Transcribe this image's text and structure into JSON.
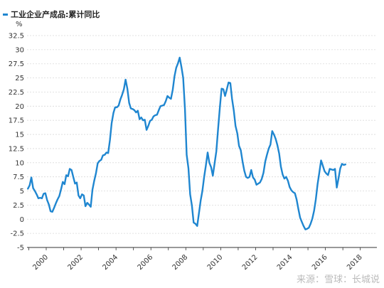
{
  "legend": {
    "label": "工业企业产成品:累计同比",
    "color": "#1f86d0"
  },
  "unit_label": "%",
  "watermark": "来源：雪球：长城说",
  "chart_data": {
    "type": "line",
    "title": "",
    "xlabel": "",
    "ylabel": "%",
    "ylim": [
      -5,
      32.5
    ],
    "yticks": [
      -5,
      -2.5,
      0,
      2.5,
      5,
      7.5,
      10,
      12.5,
      15,
      17.5,
      20,
      22.5,
      25,
      27.5,
      30,
      32.5
    ],
    "ytick_labels": [
      "-5",
      "-2.5",
      "0",
      "2.5",
      "5",
      "7.5",
      "10",
      "12.5",
      "15",
      "17.5",
      "20",
      "22.5",
      "25",
      "27.5",
      "30",
      "32.5"
    ],
    "xlim": [
      1998.9,
      2018.95
    ],
    "xticks": [
      2000,
      2002,
      2004,
      2006,
      2008,
      2010,
      2012,
      2014,
      2016,
      2018
    ],
    "xtick_labels": [
      "2000",
      "2002",
      "2004",
      "2006",
      "2008",
      "2010",
      "2012",
      "2014",
      "2016",
      "2018"
    ],
    "grid": true,
    "series": [
      {
        "name": "工业企业产成品:累计同比",
        "color": "#1f86d0",
        "points": [
          [
            1998.95,
            5.4
          ],
          [
            1999.05,
            6.0
          ],
          [
            1999.15,
            7.4
          ],
          [
            1999.25,
            5.5
          ],
          [
            1999.35,
            5.0
          ],
          [
            1999.45,
            4.4
          ],
          [
            1999.55,
            3.7
          ],
          [
            1999.65,
            3.8
          ],
          [
            1999.75,
            3.7
          ],
          [
            1999.85,
            4.5
          ],
          [
            1999.95,
            4.6
          ],
          [
            2000.05,
            3.4
          ],
          [
            2000.15,
            2.6
          ],
          [
            2000.25,
            1.4
          ],
          [
            2000.35,
            1.3
          ],
          [
            2000.45,
            2.0
          ],
          [
            2000.55,
            2.8
          ],
          [
            2000.65,
            3.5
          ],
          [
            2000.75,
            4.1
          ],
          [
            2000.85,
            5.3
          ],
          [
            2000.95,
            6.6
          ],
          [
            2001.05,
            6.2
          ],
          [
            2001.15,
            7.8
          ],
          [
            2001.25,
            7.6
          ],
          [
            2001.35,
            8.9
          ],
          [
            2001.45,
            8.7
          ],
          [
            2001.55,
            7.5
          ],
          [
            2001.65,
            6.3
          ],
          [
            2001.75,
            6.5
          ],
          [
            2001.85,
            4.2
          ],
          [
            2001.95,
            3.7
          ],
          [
            2002.05,
            4.4
          ],
          [
            2002.15,
            4.2
          ],
          [
            2002.25,
            2.3
          ],
          [
            2002.35,
            2.9
          ],
          [
            2002.45,
            2.6
          ],
          [
            2002.55,
            2.2
          ],
          [
            2002.65,
            5.2
          ],
          [
            2002.75,
            6.8
          ],
          [
            2002.85,
            8.1
          ],
          [
            2002.95,
            9.9
          ],
          [
            2003.05,
            10.3
          ],
          [
            2003.15,
            10.5
          ],
          [
            2003.25,
            11.3
          ],
          [
            2003.35,
            11.4
          ],
          [
            2003.45,
            11.8
          ],
          [
            2003.55,
            11.7
          ],
          [
            2003.65,
            14.0
          ],
          [
            2003.75,
            17.0
          ],
          [
            2003.85,
            18.8
          ],
          [
            2003.95,
            19.8
          ],
          [
            2004.05,
            19.8
          ],
          [
            2004.15,
            20.1
          ],
          [
            2004.25,
            21.2
          ],
          [
            2004.35,
            22.0
          ],
          [
            2004.45,
            23.0
          ],
          [
            2004.55,
            24.7
          ],
          [
            2004.65,
            23.1
          ],
          [
            2004.75,
            20.6
          ],
          [
            2004.85,
            19.6
          ],
          [
            2004.95,
            19.5
          ],
          [
            2005.05,
            19.3
          ],
          [
            2005.15,
            18.9
          ],
          [
            2005.25,
            19.2
          ],
          [
            2005.35,
            17.7
          ],
          [
            2005.45,
            18.0
          ],
          [
            2005.55,
            17.5
          ],
          [
            2005.65,
            17.6
          ],
          [
            2005.75,
            15.8
          ],
          [
            2005.85,
            16.5
          ],
          [
            2005.95,
            17.4
          ],
          [
            2006.05,
            17.6
          ],
          [
            2006.15,
            18.2
          ],
          [
            2006.25,
            18.4
          ],
          [
            2006.35,
            18.5
          ],
          [
            2006.45,
            19.3
          ],
          [
            2006.55,
            20.0
          ],
          [
            2006.65,
            20.1
          ],
          [
            2006.75,
            20.2
          ],
          [
            2006.85,
            20.9
          ],
          [
            2006.95,
            21.8
          ],
          [
            2007.05,
            21.5
          ],
          [
            2007.15,
            21.3
          ],
          [
            2007.25,
            22.9
          ],
          [
            2007.35,
            25.3
          ],
          [
            2007.45,
            26.8
          ],
          [
            2007.55,
            27.6
          ],
          [
            2007.65,
            28.6
          ],
          [
            2007.75,
            26.9
          ],
          [
            2007.85,
            25.0
          ],
          [
            2007.95,
            19.5
          ],
          [
            2008.05,
            11.4
          ],
          [
            2008.15,
            9.0
          ],
          [
            2008.25,
            4.4
          ],
          [
            2008.35,
            2.4
          ],
          [
            2008.45,
            -0.6
          ],
          [
            2008.55,
            -0.8
          ],
          [
            2008.65,
            -1.2
          ],
          [
            2008.75,
            1.0
          ],
          [
            2008.85,
            3.3
          ],
          [
            2008.95,
            5.0
          ],
          [
            2009.05,
            7.5
          ],
          [
            2009.15,
            9.5
          ],
          [
            2009.25,
            11.8
          ],
          [
            2009.35,
            10.0
          ],
          [
            2009.45,
            9.2
          ],
          [
            2009.55,
            7.7
          ],
          [
            2009.65,
            9.9
          ],
          [
            2009.75,
            12.0
          ],
          [
            2009.85,
            16.0
          ],
          [
            2009.95,
            19.8
          ],
          [
            2010.05,
            23.1
          ],
          [
            2010.15,
            23.0
          ],
          [
            2010.25,
            21.8
          ],
          [
            2010.35,
            23.0
          ],
          [
            2010.45,
            24.2
          ],
          [
            2010.55,
            24.1
          ],
          [
            2010.65,
            21.3
          ],
          [
            2010.75,
            19.2
          ],
          [
            2010.85,
            16.5
          ],
          [
            2010.95,
            15.2
          ],
          [
            2011.05,
            13.0
          ],
          [
            2011.15,
            12.2
          ],
          [
            2011.25,
            10.2
          ],
          [
            2011.35,
            8.6
          ],
          [
            2011.45,
            7.5
          ],
          [
            2011.55,
            7.3
          ],
          [
            2011.65,
            7.5
          ],
          [
            2011.75,
            8.7
          ],
          [
            2011.85,
            7.4
          ],
          [
            2011.95,
            7.0
          ],
          [
            2012.05,
            6.1
          ],
          [
            2012.15,
            6.3
          ],
          [
            2012.25,
            6.5
          ],
          [
            2012.35,
            7.1
          ],
          [
            2012.45,
            8.2
          ],
          [
            2012.55,
            10.2
          ],
          [
            2012.65,
            11.4
          ],
          [
            2012.75,
            12.5
          ],
          [
            2012.85,
            13.2
          ],
          [
            2012.95,
            15.6
          ],
          [
            2013.05,
            15.0
          ],
          [
            2013.15,
            14.2
          ],
          [
            2013.25,
            13.1
          ],
          [
            2013.35,
            11.6
          ],
          [
            2013.45,
            9.3
          ],
          [
            2013.55,
            7.9
          ],
          [
            2013.65,
            7.2
          ],
          [
            2013.75,
            7.5
          ],
          [
            2013.85,
            6.8
          ],
          [
            2013.95,
            5.7
          ],
          [
            2014.05,
            5.1
          ],
          [
            2014.15,
            4.8
          ],
          [
            2014.25,
            4.6
          ],
          [
            2014.35,
            3.5
          ],
          [
            2014.45,
            1.8
          ],
          [
            2014.55,
            0.3
          ],
          [
            2014.65,
            -0.5
          ],
          [
            2014.75,
            -1.2
          ],
          [
            2014.85,
            -1.8
          ],
          [
            2014.95,
            -1.7
          ],
          [
            2015.05,
            -1.5
          ],
          [
            2015.15,
            -0.8
          ],
          [
            2015.25,
            0.1
          ],
          [
            2015.35,
            1.5
          ],
          [
            2015.45,
            3.5
          ],
          [
            2015.55,
            6.2
          ],
          [
            2015.65,
            8.2
          ],
          [
            2015.75,
            10.4
          ],
          [
            2015.85,
            9.5
          ],
          [
            2015.95,
            8.5
          ],
          [
            2016.05,
            8.1
          ],
          [
            2016.15,
            7.8
          ],
          [
            2016.25,
            8.9
          ],
          [
            2016.35,
            8.8
          ],
          [
            2016.45,
            8.7
          ],
          [
            2016.55,
            8.9
          ],
          [
            2016.65,
            5.6
          ],
          [
            2016.75,
            7.2
          ],
          [
            2016.85,
            9.0
          ],
          [
            2016.95,
            9.8
          ],
          [
            2017.05,
            9.6
          ],
          [
            2017.15,
            9.7
          ]
        ]
      }
    ]
  }
}
